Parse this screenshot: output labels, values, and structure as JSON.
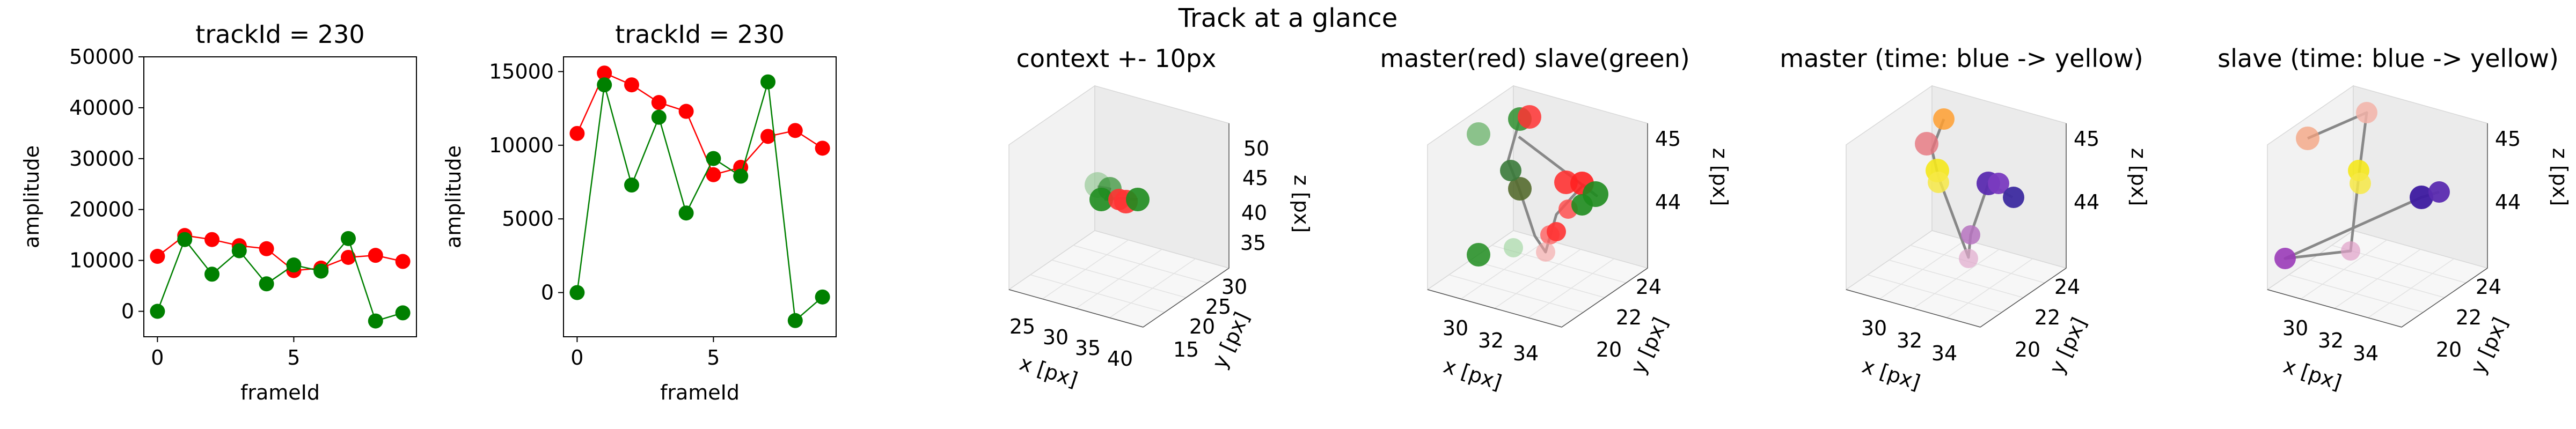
{
  "figure": {
    "suptitle": "Track at a glance"
  },
  "chart_data": [
    {
      "type": "line",
      "title": "trackId = 230",
      "xlabel": "frameId",
      "ylabel": "amplitude",
      "xlim": [
        -0.5,
        9.5
      ],
      "ylim": [
        -5000,
        50000
      ],
      "xticks": [
        0,
        5
      ],
      "yticks": [
        0,
        10000,
        20000,
        30000,
        40000,
        50000
      ],
      "x": [
        0,
        1,
        2,
        3,
        4,
        5,
        6,
        7,
        8,
        9
      ],
      "series": [
        {
          "color": "#ff0000",
          "values": [
            10800,
            14900,
            14100,
            12900,
            12300,
            8000,
            8500,
            10600,
            11000,
            9800
          ]
        },
        {
          "color": "#008000",
          "values": [
            0,
            14100,
            7300,
            11900,
            5400,
            9100,
            7900,
            14300,
            -1900,
            -300
          ]
        }
      ]
    },
    {
      "type": "line",
      "title": "trackId = 230",
      "xlabel": "frameId",
      "ylabel": "amplitude",
      "xlim": [
        -0.5,
        9.5
      ],
      "ylim": [
        -3000,
        16000
      ],
      "xticks": [
        0,
        5
      ],
      "yticks": [
        0,
        5000,
        10000,
        15000
      ],
      "x": [
        0,
        1,
        2,
        3,
        4,
        5,
        6,
        7,
        8,
        9
      ],
      "series": [
        {
          "color": "#ff0000",
          "values": [
            10800,
            14900,
            14100,
            12900,
            12300,
            8000,
            8500,
            10600,
            11000,
            9800
          ]
        },
        {
          "color": "#008000",
          "values": [
            0,
            14100,
            7300,
            11900,
            5400,
            9100,
            7900,
            14300,
            -1900,
            -300
          ]
        }
      ]
    },
    {
      "type": "scatter",
      "title": "context +- 10px",
      "xlabel": "x [px]",
      "ylabel": "y [px]",
      "zlabel": "z [px]",
      "xticks": [
        "25",
        "30",
        "35",
        "40"
      ],
      "yticks": [
        "15",
        "20",
        "25",
        "30"
      ],
      "zticks": [
        "35",
        "40",
        "45",
        "50"
      ],
      "marker_colors": [
        "#7fbf7f",
        "#2f8f2f",
        "#1e8c1e",
        "#ff3333",
        "#ff3333",
        "#1e8c1e"
      ]
    },
    {
      "type": "scatter",
      "title": "master(red) slave(green)",
      "xlabel": "x [px]",
      "ylabel": "y [px]",
      "zlabel": "z [px]",
      "xticks": [
        "30",
        "32",
        "34"
      ],
      "yticks": [
        "20",
        "22",
        "24"
      ],
      "zticks": [
        "44",
        "45"
      ],
      "marker_colors": [
        "#5fae5f",
        "#2f8f2f",
        "#ff3333",
        "#ff3333",
        "#ff2020",
        "#ff5050",
        "#1e8c1e",
        "#1e8c1e",
        "#556b2f",
        "#3a7a3a",
        "#ff6060",
        "#f4a0a0",
        "#1e8c1e",
        "#8fcf8f",
        "#ff3333"
      ]
    },
    {
      "type": "scatter",
      "title": "master (time: blue -> yellow)",
      "xlabel": "x [px]",
      "ylabel": "y [px]",
      "zlabel": "z [px]",
      "xticks": [
        "30",
        "32",
        "34"
      ],
      "yticks": [
        "20",
        "22",
        "24"
      ],
      "zticks": [
        "44",
        "45"
      ],
      "marker_colors": [
        "#ff9f30",
        "#e5737c",
        "#f5e81c",
        "#f7e946",
        "#5b2bb0",
        "#7a3bc0",
        "#3d2ba0",
        "#b673c0",
        "#e0a8cc"
      ]
    },
    {
      "type": "scatter",
      "title": "slave (time: blue -> yellow)",
      "xlabel": "x [px]",
      "ylabel": "y [px]",
      "zlabel": "z [px]",
      "xticks": [
        "30",
        "32",
        "34"
      ],
      "yticks": [
        "20",
        "22",
        "24"
      ],
      "zticks": [
        "44",
        "45"
      ],
      "marker_colors": [
        "#f4a07c",
        "#f3b3a8",
        "#f5e81c",
        "#f7e946",
        "#3d1aa0",
        "#5b2bb0",
        "#9a3bb8",
        "#e0a0c8"
      ]
    }
  ]
}
